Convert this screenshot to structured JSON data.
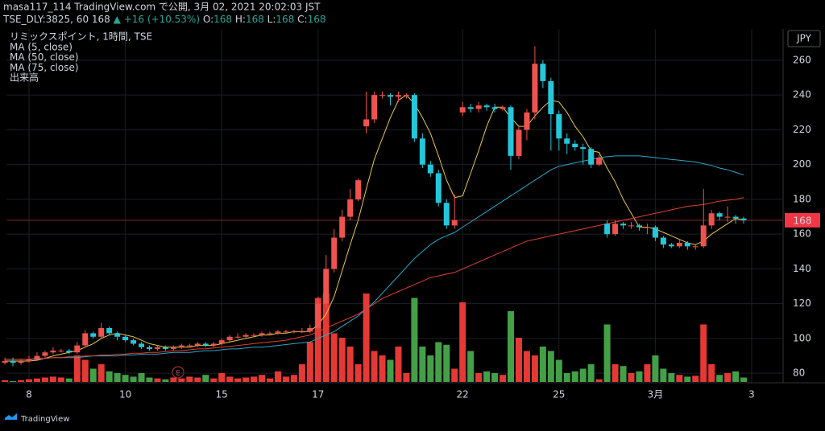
{
  "chart_data": {
    "type": "candlestick",
    "header": {
      "publisher": "masa117_114 TradingView.com で公開, 3月 02, 2021 20:02:03 JST",
      "symbol": "TSE_DLY:3825, 60",
      "price": "168",
      "change": "+16 (+10.53%)",
      "o_label": "O:",
      "o": "168",
      "h_label": "H:",
      "h": "168",
      "l_label": "L:",
      "l": "168",
      "c_label": "C:",
      "c": "168"
    },
    "title": "リミックスポイント, 1時間, TSE",
    "volume_label": "出来高",
    "currency": "JPY",
    "brand": "TradingView",
    "event_marker": "E",
    "categories": [
      null,
      null,
      null,
      "8",
      null,
      null,
      null,
      null,
      null,
      null,
      null,
      null,
      null,
      null,
      null,
      "10",
      null,
      null,
      null,
      null,
      null,
      null,
      null,
      null,
      null,
      null,
      null,
      "15",
      null,
      null,
      null,
      null,
      null,
      null,
      null,
      null,
      null,
      null,
      null,
      "17",
      null,
      null,
      null,
      null,
      null,
      null,
      null,
      null,
      null,
      null,
      null,
      null,
      null,
      null,
      null,
      null,
      null,
      "22",
      null,
      null,
      null,
      null,
      null,
      null,
      null,
      null,
      null,
      null,
      null,
      "25",
      null,
      null,
      null,
      null,
      null,
      null,
      null,
      null,
      null,
      null,
      null,
      "3月",
      null,
      null,
      null,
      null,
      null,
      null,
      null,
      null,
      null,
      null,
      null,
      "3"
    ],
    "open": [
      86,
      87,
      86,
      87,
      88,
      90,
      92,
      93,
      93,
      92,
      96,
      103,
      101,
      106,
      103,
      101,
      99,
      97,
      95,
      94,
      95,
      94,
      95,
      96,
      96,
      97,
      96,
      97,
      99,
      101,
      101,
      102,
      102,
      103,
      103,
      104,
      104,
      104,
      104,
      106,
      120,
      140,
      158,
      170,
      180,
      222,
      226,
      240,
      240,
      239,
      240,
      240,
      215,
      200,
      195,
      178,
      165,
      230,
      233,
      232,
      234,
      233,
      232,
      233,
      205,
      220,
      230,
      258,
      248,
      229,
      215,
      212,
      210,
      209,
      200,
      166,
      160,
      166,
      165,
      165,
      164,
      164,
      158,
      154,
      153,
      155,
      153,
      153,
      165,
      172,
      170,
      170,
      169,
      null
    ],
    "high": [
      89,
      89,
      88,
      90,
      92,
      93,
      95,
      94,
      94,
      98,
      105,
      104,
      109,
      107,
      104,
      102,
      100,
      98,
      96,
      96,
      96,
      96,
      97,
      97,
      98,
      98,
      98,
      100,
      102,
      103,
      103,
      103,
      104,
      104,
      105,
      105,
      105,
      106,
      108,
      124,
      148,
      163,
      174,
      186,
      192,
      242,
      242,
      242,
      241,
      242,
      241,
      241,
      218,
      202,
      197,
      180,
      183,
      236,
      235,
      236,
      235,
      235,
      234,
      234,
      222,
      232,
      268,
      260,
      250,
      231,
      218,
      214,
      212,
      210,
      206,
      168,
      168,
      167,
      167,
      166,
      166,
      165,
      159,
      155,
      157,
      156,
      154,
      186,
      174,
      173,
      176,
      171,
      170,
      null
    ],
    "low": [
      85,
      84,
      85,
      86,
      87,
      89,
      91,
      92,
      91,
      91,
      95,
      100,
      100,
      102,
      99,
      98,
      96,
      94,
      93,
      93,
      93,
      93,
      94,
      95,
      95,
      95,
      95,
      96,
      98,
      100,
      100,
      101,
      101,
      102,
      102,
      103,
      103,
      103,
      103,
      105,
      118,
      138,
      156,
      168,
      179,
      218,
      224,
      238,
      234,
      236,
      238,
      213,
      198,
      193,
      176,
      163,
      163,
      228,
      230,
      230,
      231,
      230,
      231,
      197,
      203,
      214,
      226,
      244,
      208,
      208,
      206,
      208,
      200,
      198,
      199,
      158,
      159,
      163,
      163,
      162,
      160,
      156,
      152,
      152,
      152,
      151,
      151,
      152,
      163,
      168,
      167,
      166,
      166,
      null
    ],
    "close": [
      87,
      86,
      87,
      88,
      90,
      92,
      93,
      93,
      92,
      96,
      103,
      101,
      106,
      103,
      101,
      99,
      97,
      95,
      94,
      95,
      94,
      95,
      96,
      96,
      97,
      96,
      97,
      99,
      101,
      101,
      102,
      102,
      103,
      103,
      104,
      104,
      104,
      104,
      106,
      120,
      140,
      158,
      170,
      180,
      191,
      226,
      240,
      240,
      239,
      240,
      240,
      215,
      200,
      195,
      178,
      165,
      168,
      233,
      232,
      234,
      233,
      232,
      233,
      205,
      220,
      230,
      258,
      248,
      229,
      215,
      212,
      210,
      209,
      200,
      204,
      160,
      166,
      165,
      165,
      164,
      164,
      158,
      154,
      153,
      155,
      153,
      153,
      165,
      172,
      170,
      170,
      169,
      168,
      null
    ],
    "volume": [
      2,
      1,
      2,
      3,
      4,
      5,
      6,
      5,
      4,
      30,
      25,
      15,
      20,
      12,
      10,
      8,
      6,
      10,
      5,
      4,
      3,
      5,
      4,
      6,
      5,
      8,
      4,
      10,
      6,
      4,
      5,
      6,
      8,
      4,
      12,
      6,
      8,
      20,
      45,
      95,
      100,
      55,
      50,
      40,
      20,
      100,
      35,
      30,
      25,
      40,
      10,
      95,
      40,
      30,
      45,
      42,
      15,
      90,
      35,
      10,
      12,
      10,
      8,
      80,
      50,
      35,
      30,
      40,
      35,
      25,
      10,
      12,
      15,
      20,
      3,
      65,
      20,
      18,
      10,
      12,
      20,
      30,
      15,
      10,
      8,
      6,
      7,
      65,
      20,
      8,
      10,
      12,
      5,
      null
    ],
    "vlim": [
      0,
      100
    ],
    "up_color": "#ef5350",
    "down_color": "#26c6da",
    "vol_up_color": "#e53935",
    "vol_down_color": "#43a047",
    "series": [
      {
        "name": "MA (5, close)",
        "color": "#e8c547",
        "values": [
          87,
          87,
          87,
          87,
          87.5,
          88.6,
          90,
          91,
          92,
          93,
          95,
          97,
          100,
          102,
          103,
          102,
          101,
          99,
          97,
          96,
          95,
          95,
          95,
          95,
          96,
          96,
          96,
          97,
          98,
          99,
          100,
          101,
          102,
          102,
          103,
          103,
          104,
          104,
          104,
          108,
          114,
          124,
          139,
          154,
          168,
          186,
          203,
          215,
          227,
          237,
          240,
          235,
          227,
          218,
          205,
          191,
          181,
          182,
          195,
          208,
          222,
          233,
          233,
          227,
          222,
          222,
          228,
          233,
          237,
          236,
          230,
          222,
          216,
          208,
          207,
          198,
          190,
          180,
          172,
          164,
          164,
          163,
          161,
          159,
          157,
          155,
          154,
          156,
          160,
          163,
          166,
          169,
          168,
          null
        ]
      },
      {
        "name": "MA (50, close)",
        "color": "#2aa7c9",
        "values": [
          88,
          88,
          88,
          88,
          88,
          88.5,
          89,
          89,
          89,
          89,
          89.5,
          90,
          90,
          90,
          90,
          90.5,
          90.5,
          91,
          91,
          91,
          91.5,
          92,
          92,
          92,
          92.5,
          93,
          93,
          93.5,
          94,
          94,
          94.5,
          95,
          95,
          95.5,
          96,
          96.5,
          97,
          97.5,
          98,
          100,
          102,
          104,
          107,
          110,
          113,
          117,
          121,
          126,
          131,
          136,
          141,
          146,
          150,
          154,
          157,
          159,
          161,
          164,
          167,
          170,
          173,
          176,
          179,
          182,
          185,
          188,
          191,
          194,
          197,
          199,
          200,
          201,
          202,
          203,
          204,
          204.5,
          205,
          205,
          205,
          205,
          204.5,
          204,
          203.5,
          203,
          202.5,
          202,
          201.5,
          200.5,
          199.5,
          198,
          197,
          195.5,
          194,
          null
        ]
      },
      {
        "name": "MA (75, close)",
        "color": "#e0402f",
        "values": [
          88,
          88,
          88,
          88,
          88.5,
          88.5,
          89,
          89,
          89.5,
          89.5,
          90,
          90,
          90.5,
          90.5,
          91,
          91,
          91.5,
          91.5,
          92,
          92,
          92.5,
          93,
          93,
          93.5,
          94,
          94,
          94.5,
          95,
          95.5,
          96,
          96.5,
          97,
          97.5,
          98,
          98.5,
          99,
          100,
          101,
          102,
          104,
          106,
          108,
          110,
          112,
          114,
          117,
          120,
          123,
          125,
          127,
          129,
          131,
          133,
          135,
          136,
          137,
          138,
          140,
          142,
          144,
          146,
          148,
          150,
          152,
          154,
          156,
          157,
          158,
          159,
          160,
          161,
          162,
          163,
          164,
          165,
          166,
          167,
          168,
          169,
          170,
          171,
          172,
          173,
          174,
          175,
          176,
          176.5,
          177,
          178,
          179,
          179.5,
          180,
          181,
          null
        ]
      }
    ],
    "last_price": 168,
    "last_label": "168",
    "ylim": [
      75,
      278
    ],
    "yticks": [
      80,
      100,
      120,
      140,
      160,
      180,
      200,
      220,
      240,
      260
    ],
    "grid": true
  }
}
